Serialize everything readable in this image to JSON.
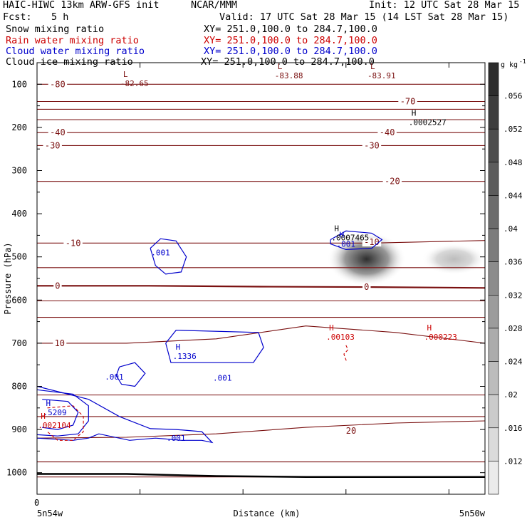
{
  "header": {
    "title_left": "HAIC-HIWC 13km ARW-GFS init",
    "org": "NCAR/MMM",
    "init": "Init: 12 UTC Sat 28 Mar 15",
    "fcst_label": "Fcst:",
    "fcst_value": "5 h",
    "valid": "Valid: 17 UTC Sat 28 Mar 15 (14 LST Sat 28 Mar 15)"
  },
  "fields": [
    {
      "name": "Snow mixing ratio",
      "xy": "XY= 251.0,100.0 to 284.7,100.0",
      "color": "#000000"
    },
    {
      "name": "Rain water mixing ratio",
      "xy": "XY= 251.0,100.0 to 284.7,100.0",
      "color": "#cc0000"
    },
    {
      "name": "Cloud water mixing ratio",
      "xy": "XY= 251.0,100.0 to 284.7,100.0",
      "color": "#0000cc"
    },
    {
      "name": "Cloud ice mixing ratio",
      "xy": "XY= 251.0,100.0 to 284.7,100.0",
      "color": "#000000"
    }
  ],
  "colors": {
    "temperature": "#7a1010",
    "rain": "#cc0000",
    "cloud_water": "#0000cc",
    "frame": "#000000"
  },
  "chart_data": {
    "type": "heatmap",
    "ylabel": "Pressure (hPa)",
    "xlabel": "Distance (km)",
    "y_inverted": true,
    "ylim": [
      1050,
      50
    ],
    "xlim": [
      0,
      4.35
    ],
    "yticks": [
      100,
      200,
      300,
      400,
      500,
      600,
      700,
      800,
      900,
      1000
    ],
    "x_zero_label": "0",
    "x_left_label": "5n54w",
    "x_right_label": "5n50w",
    "colorbar": {
      "unit": "g kg",
      "unit_exp": "-1",
      "ticks": [
        ".056",
        ".052",
        ".048",
        ".044",
        ".04",
        ".036",
        ".032",
        ".028",
        ".024",
        ".02",
        ".016",
        ".012"
      ],
      "levels": [
        0.012,
        0.016,
        0.02,
        0.024,
        0.028,
        0.032,
        0.036,
        0.04,
        0.044,
        0.048,
        0.052,
        0.056,
        0.06
      ]
    },
    "snow_blobs": [
      {
        "x": 3.2,
        "p": 505,
        "value": 0.06
      },
      {
        "x": 4.05,
        "p": 505,
        "value": 0.024
      }
    ],
    "temperature_contours": [
      {
        "value": -80,
        "label": "-80",
        "p": [
          100,
          100,
          100,
          100,
          100
        ],
        "lx": 0.2,
        "lp": 100
      },
      {
        "value": -70,
        "label": "-70",
        "p": [
          140,
          140,
          140,
          140,
          140
        ],
        "lx": 3.6,
        "lp": 140
      },
      {
        "value": -60,
        "label": "",
        "p": [
          158,
          158,
          158,
          158,
          158
        ]
      },
      {
        "value": -50,
        "label": "",
        "p": [
          182,
          182,
          182,
          182,
          182
        ]
      },
      {
        "value": -40,
        "label": "-40",
        "p": [
          212,
          212,
          212,
          212,
          212
        ],
        "lx": 0.2,
        "lp": 212
      },
      {
        "value": -40,
        "label": "-40",
        "p": [
          212,
          212,
          212,
          212,
          212
        ],
        "lx": 3.4,
        "lp": 212,
        "label_only": true
      },
      {
        "value": -30,
        "label": "-30",
        "p": [
          242,
          242,
          242,
          242,
          242
        ],
        "lx": 0.15,
        "lp": 242
      },
      {
        "value": -30,
        "label": "-30",
        "p": [
          242,
          242,
          242,
          242,
          242
        ],
        "lx": 3.25,
        "lp": 242,
        "label_only": true
      },
      {
        "value": -20,
        "label": "-20",
        "p": [
          325,
          325,
          325,
          325,
          325
        ],
        "lx": 3.45,
        "lp": 325
      },
      {
        "value": -10,
        "label": "-10",
        "p": [
          468,
          468,
          468,
          468,
          462
        ],
        "lx": 0.35,
        "lp": 468
      },
      {
        "value": -10,
        "label": "-10",
        "p": [
          468,
          468,
          468,
          468,
          462
        ],
        "lx": 3.25,
        "lp": 466,
        "label_only": true
      },
      {
        "value": 0,
        "label": "0",
        "p": [
          567,
          567,
          569,
          570,
          572
        ],
        "lx": 0.2,
        "lp": 567
      },
      {
        "value": 0,
        "label": "0",
        "p": [
          567,
          567,
          569,
          570,
          572
        ],
        "lx": 3.2,
        "lp": 570,
        "label_only": true
      },
      {
        "value": 10,
        "label": "10",
        "p": [
          700,
          700,
          690,
          660,
          675,
          700
        ],
        "lx": 0.22,
        "lp": 700
      },
      {
        "value": 20,
        "label": "20",
        "p": [
          920,
          918,
          910,
          895,
          885,
          880
        ],
        "lx": 3.05,
        "lp": 903
      }
    ],
    "temperature_extra_levels": [
      525,
      602,
      640,
      820,
      870,
      975,
      1010
    ],
    "extrema": [
      {
        "type": "L",
        "value": "-82.65",
        "x": 0.85,
        "p": 88,
        "color": "#7a1010"
      },
      {
        "type": "L",
        "value": "-83.88",
        "x": 2.35,
        "p": 70,
        "color": "#7a1010"
      },
      {
        "type": "L",
        "value": "-83.91",
        "x": 3.25,
        "p": 70,
        "color": "#7a1010"
      },
      {
        "type": "H",
        "value": ".0002527",
        "x": 3.65,
        "p": 178,
        "color": "#000000"
      },
      {
        "type": "H",
        "value": ".0007465",
        "x": 2.9,
        "p": 445,
        "color": "#000000"
      },
      {
        "type": "H",
        "value": ".001",
        "x": 2.95,
        "p": 460,
        "color": "#0000cc"
      },
      {
        "type": "H",
        "value": ".00103",
        "x": 2.85,
        "p": 675,
        "color": "#cc0000"
      },
      {
        "type": "H",
        "value": ".000223",
        "x": 3.8,
        "p": 675,
        "color": "#cc0000"
      },
      {
        "type": "H",
        "value": ".1336",
        "x": 1.36,
        "p": 720,
        "color": "#0000cc"
      },
      {
        "type": "H",
        "value": ".5209",
        "x": 0.1,
        "p": 850,
        "color": "#0000cc"
      },
      {
        "type": "H",
        "value": ".002104",
        "x": 0.05,
        "p": 880,
        "color": "#cc0000"
      }
    ],
    "contour_labels": [
      {
        "text": ".001",
        "x": 1.2,
        "p": 490,
        "color": "#0000cc"
      },
      {
        "text": ".001",
        "x": 0.75,
        "p": 778,
        "color": "#0000cc"
      },
      {
        "text": ".001",
        "x": 1.8,
        "p": 780,
        "color": "#0000cc"
      },
      {
        "text": ".001",
        "x": 1.35,
        "p": 920,
        "color": "#0000cc"
      }
    ],
    "ground_pressure": [
      1003,
      1003,
      1008,
      1010,
      1010,
      1010
    ],
    "cloud_water_contours": [
      {
        "value": 0.001,
        "points": [
          [
            1.1,
            480
          ],
          [
            1.2,
            458
          ],
          [
            1.35,
            463
          ],
          [
            1.45,
            500
          ],
          [
            1.4,
            535
          ],
          [
            1.25,
            540
          ],
          [
            1.15,
            520
          ],
          [
            1.1,
            480
          ]
        ]
      },
      {
        "value": 0.001,
        "points": [
          [
            2.85,
            460
          ],
          [
            3.0,
            440
          ],
          [
            3.25,
            445
          ],
          [
            3.35,
            460
          ],
          [
            3.25,
            480
          ],
          [
            3.0,
            483
          ],
          [
            2.85,
            470
          ],
          [
            2.85,
            460
          ]
        ]
      },
      {
        "value": 0.001,
        "points": [
          [
            1.25,
            700
          ],
          [
            1.35,
            670
          ],
          [
            2.15,
            675
          ],
          [
            2.2,
            710
          ],
          [
            2.1,
            745
          ],
          [
            1.3,
            745
          ],
          [
            1.25,
            700
          ]
        ]
      },
      {
        "value": 0.001,
        "points": [
          [
            0.8,
            755
          ],
          [
            0.95,
            745
          ],
          [
            1.05,
            770
          ],
          [
            0.95,
            800
          ],
          [
            0.82,
            795
          ],
          [
            0.77,
            775
          ],
          [
            0.8,
            755
          ]
        ]
      },
      {
        "value": 0.001,
        "points": [
          [
            0.0,
            800
          ],
          [
            0.5,
            830
          ],
          [
            0.8,
            870
          ],
          [
            1.1,
            898
          ],
          [
            1.35,
            900
          ],
          [
            1.6,
            905
          ],
          [
            1.7,
            930
          ],
          [
            1.6,
            925
          ],
          [
            1.4,
            925
          ],
          [
            1.25,
            922
          ],
          [
            1.15,
            920
          ],
          [
            0.9,
            925
          ],
          [
            0.6,
            910
          ],
          [
            0.5,
            920
          ],
          [
            0.35,
            925
          ],
          [
            0.0,
            920
          ]
        ]
      },
      {
        "value": 0.1,
        "points": [
          [
            0.0,
            808
          ],
          [
            0.35,
            818
          ],
          [
            0.5,
            845
          ],
          [
            0.5,
            880
          ],
          [
            0.4,
            910
          ],
          [
            0.2,
            915
          ],
          [
            0.0,
            912
          ]
        ]
      },
      {
        "value": 0.2,
        "points": [
          [
            0.05,
            830
          ],
          [
            0.3,
            835
          ],
          [
            0.4,
            860
          ],
          [
            0.35,
            890
          ],
          [
            0.2,
            900
          ],
          [
            0.05,
            895
          ]
        ]
      }
    ],
    "rain_contours": [
      {
        "value": 0.001,
        "points": [
          [
            0.1,
            850
          ],
          [
            0.35,
            845
          ],
          [
            0.45,
            870
          ],
          [
            0.45,
            905
          ],
          [
            0.35,
            925
          ],
          [
            0.2,
            925
          ],
          [
            0.1,
            905
          ]
        ]
      },
      {
        "value": 0.001,
        "points": [
          [
            3.0,
            705
          ],
          [
            3.02,
            715
          ],
          [
            2.98,
            725
          ],
          [
            3.01,
            745
          ]
        ]
      }
    ]
  }
}
